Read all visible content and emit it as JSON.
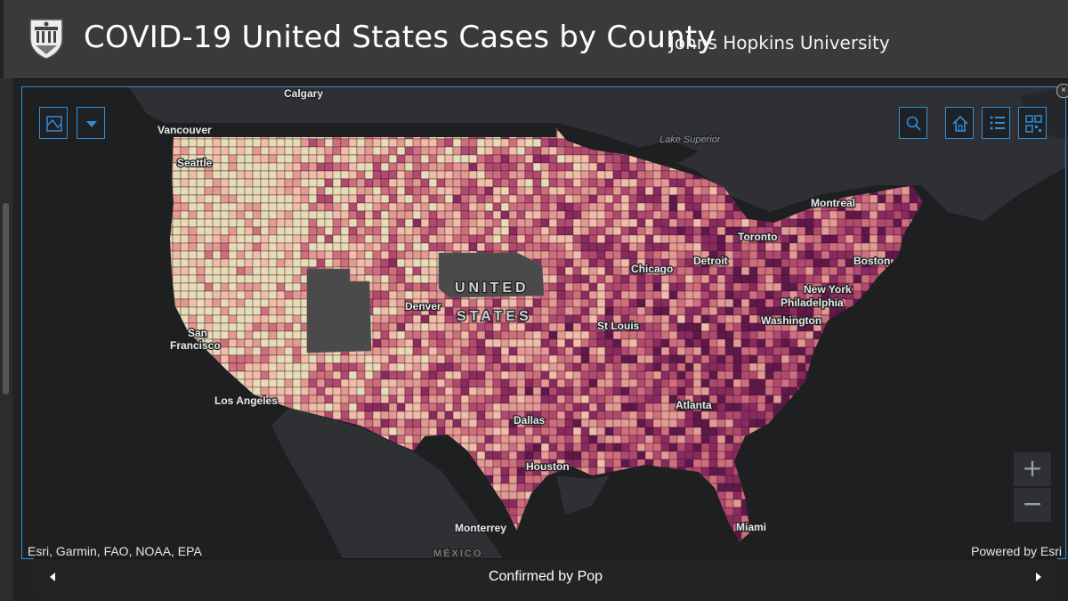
{
  "header": {
    "title": "COVID-19 United States Cases by County",
    "subtitle": "Johns Hopkins University",
    "logo_icon": "university-shield-icon"
  },
  "map": {
    "labels": {
      "calgary": "Calgary",
      "vancouver": "Vancouver",
      "seattle": "Seattle",
      "lake_superior": "Lake Superior",
      "montreal": "Montreal",
      "toronto": "Toronto",
      "detroit": "Detroit",
      "chicago": "Chicago",
      "boston": "Boston",
      "new_york": "New York",
      "philadelphia": "Philadelphia",
      "washington": "Washington",
      "denver": "Denver",
      "united": "UNITED",
      "states": "STATES",
      "st_louis": "St Louis",
      "san_francisco_1": "San",
      "san_francisco_2": "Francisco",
      "los_angeles": "Los Angeles",
      "dallas": "Dallas",
      "atlanta": "Atlanta",
      "houston": "Houston",
      "monterrey": "Monterrey",
      "miami": "Miami",
      "mexico": "MÉXICO"
    },
    "attribution": "Esri, Garmin, FAO, NOAA, EPA",
    "powered_by": "Powered by Esri",
    "colors": {
      "ramp": [
        "#e6dcb6",
        "#efbda8",
        "#e39a93",
        "#cf6f7d",
        "#b2496e",
        "#8a2a5e",
        "#5e1849"
      ],
      "no_data": "#4a4a4a",
      "water": "#1e1f20",
      "land": "#2f3033",
      "accent": "#2f8ed9"
    }
  },
  "toolbar": {
    "basemap_icon": "basemap-gallery-icon",
    "dropdown_icon": "caret-down-icon",
    "search_icon": "search-icon",
    "home_icon": "home-icon",
    "legend_icon": "legend-list-icon",
    "qr_icon": "qr-code-icon"
  },
  "zoom": {
    "in": "+",
    "out": "−"
  },
  "bottom_bar": {
    "title": "Confirmed by Pop"
  }
}
